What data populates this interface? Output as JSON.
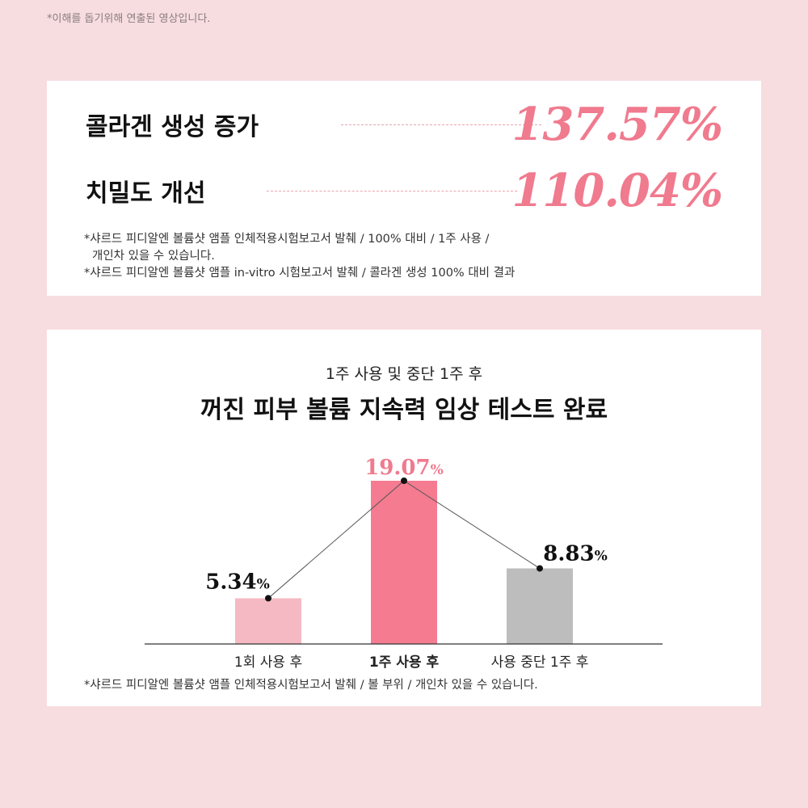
{
  "top_disclaimer": "*이해를 돕기위해 연출된 영상입니다.",
  "stats": [
    {
      "label": "콜라겐 생성 증가",
      "value": "137.57%"
    },
    {
      "label": "치밀도 개선",
      "value": "110.04%"
    }
  ],
  "stat_notes": [
    "*샤르드 피디알엔 볼륨샷 앰플 인체적용시험보고서 발췌 / 100% 대비 / 1주 사용 /",
    "개인차 있을 수 있습니다.",
    "*샤르드 피디알엔 볼륨샷 앰플 in-vitro 시험보고서 발췌 / 콜라겐 생성 100% 대비 결과"
  ],
  "chart_data": {
    "type": "bar",
    "subtitle": "1주 사용 및 중단 1주 후",
    "title": "꺼진 피부 볼륨 지속력 임상 테스트 완료",
    "categories": [
      "1회 사용 후",
      "1주 사용 후",
      "사용 중단 1주 후"
    ],
    "values": [
      5.34,
      19.07,
      8.83
    ],
    "value_labels": [
      "5.34",
      "19.07",
      "8.83"
    ],
    "unit": "%",
    "bar_colors": [
      "#f4b9c3",
      "#f47b90",
      "#bdbdbd"
    ],
    "value_label_colors": [
      "#111111",
      "#f07a8e",
      "#111111"
    ],
    "highlight_index": 1,
    "trend_line": true,
    "ylim": [
      0,
      19.07
    ],
    "grid": false,
    "legend": "none"
  },
  "chart_note": "*샤르드 피디알엔 볼륨샷 앰플 인체적용시험보고서 발췌 / 볼 부위 / 개인차 있을 수 있습니다."
}
